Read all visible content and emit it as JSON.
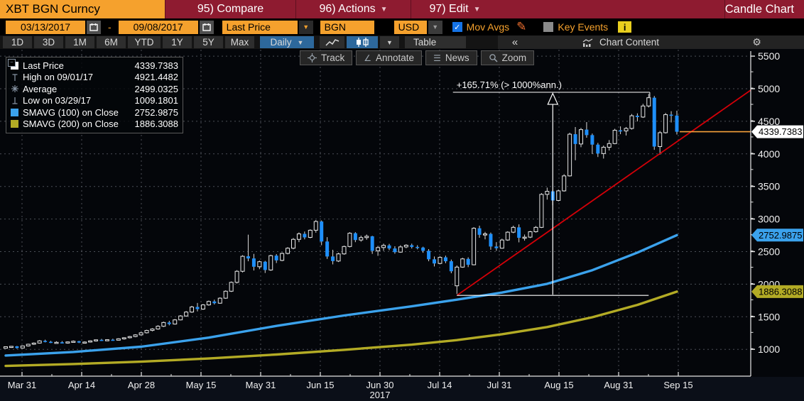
{
  "window": {
    "ticker": "XBT BGN Curncy",
    "menu": [
      {
        "label": "95) Compare",
        "has_dropdown": false
      },
      {
        "label": "96) Actions",
        "has_dropdown": true
      },
      {
        "label": "97) Edit",
        "has_dropdown": true
      }
    ],
    "view_title": "Candle Chart"
  },
  "settings_bar": {
    "date_from": "03/13/2017",
    "date_separator": "-",
    "date_to": "09/08/2017",
    "field": "Last Price",
    "source": "BGN",
    "currency": "USD",
    "mov_avgs_label": "Mov Avgs",
    "mov_avgs_checked": true,
    "key_events_label": "Key Events",
    "key_events_checked": false,
    "info_label": "i"
  },
  "toolbar": {
    "ranges": [
      "1D",
      "3D",
      "1M",
      "6M",
      "YTD",
      "1Y",
      "5Y",
      "Max"
    ],
    "period": "Daily",
    "table_label": "Table",
    "collapse_label": "«",
    "chart_content_label": "Chart Content",
    "gear_icon": "⚙"
  },
  "chart_toolbar": {
    "track": "Track",
    "annotate": "Annotate",
    "news": "News",
    "zoom": "Zoom"
  },
  "legend": {
    "rows": [
      {
        "swatch": "#ffffff",
        "icon": "square",
        "label": "Last Price",
        "value": "4339.7383"
      },
      {
        "swatch": "",
        "icon": "high",
        "label": "High on 09/01/17",
        "value": "4921.4482"
      },
      {
        "swatch": "",
        "icon": "avg",
        "label": "Average",
        "value": "2499.0325"
      },
      {
        "swatch": "",
        "icon": "low",
        "label": "Low on 03/29/17",
        "value": "1009.1801"
      },
      {
        "swatch": "#3ba2ec",
        "icon": "square",
        "label": "SMAVG (100) on Close",
        "value": "2752.9875"
      },
      {
        "swatch": "#b3ab25",
        "icon": "square",
        "label": "SMAVG (200) on Close",
        "value": "1886.3088"
      }
    ]
  },
  "axis_tags": {
    "last_price": "4339.7383",
    "sma100": "2752.9875",
    "sma200": "1886.3088"
  },
  "colors": {
    "bar_red": "#8e1b30",
    "accent_orange": "#f5a12d",
    "candle_up": "#e8e8e8",
    "candle_down": "#1e8ffa",
    "wick": "#d9d9d9",
    "sma100": "#3ba2ec",
    "sma200": "#b3ab25",
    "trend": "#d40008",
    "support": "#ffffff",
    "last_price_line": "#f8a13a",
    "grid": "#4b4f57",
    "axis": "#e8e8e8",
    "selected_blue": "#2d689c"
  },
  "chart_data": {
    "type": "candlestick",
    "title": "XBT BGN Curncy - Candle Chart (Daily, 03/13/2017 - 09/08/2017)",
    "x_labels": [
      "Mar 31",
      "Apr 14",
      "Apr 28",
      "May 15",
      "May 31",
      "Jun 15",
      "Jun 30",
      "Jul 14",
      "Jul 31",
      "Aug 15",
      "Aug 31",
      "Sep 15"
    ],
    "year_label": "2017",
    "y_ticks": [
      1000,
      1500,
      2000,
      2500,
      3000,
      3500,
      4000,
      4500,
      5000,
      5500
    ],
    "y_minor_step": 250,
    "ylim": [
      760,
      5560
    ],
    "grid": true,
    "last_price": 4339.7383,
    "candles": [
      [
        "03/27",
        1016,
        1045,
        1010,
        1040
      ],
      [
        "03/28",
        1040,
        1052,
        1022,
        1046
      ],
      [
        "03/29",
        1046,
        1052,
        1009,
        1020
      ],
      [
        "03/30",
        1020,
        1058,
        1016,
        1052
      ],
      [
        "03/31",
        1052,
        1086,
        1044,
        1078
      ],
      [
        "04/03",
        1078,
        1105,
        1068,
        1096
      ],
      [
        "04/04",
        1096,
        1142,
        1088,
        1130
      ],
      [
        "04/05",
        1130,
        1148,
        1106,
        1116
      ],
      [
        "04/06",
        1116,
        1130,
        1096,
        1102
      ],
      [
        "04/07",
        1102,
        1124,
        1094,
        1108
      ],
      [
        "04/10",
        1108,
        1126,
        1090,
        1096
      ],
      [
        "04/11",
        1096,
        1120,
        1088,
        1114
      ],
      [
        "04/12",
        1114,
        1136,
        1106,
        1124
      ],
      [
        "04/13",
        1124,
        1130,
        1096,
        1104
      ],
      [
        "04/14",
        1104,
        1122,
        1092,
        1112
      ],
      [
        "04/17",
        1112,
        1138,
        1104,
        1130
      ],
      [
        "04/18",
        1130,
        1152,
        1120,
        1146
      ],
      [
        "04/19",
        1146,
        1160,
        1128,
        1136
      ],
      [
        "04/20",
        1136,
        1155,
        1126,
        1148
      ],
      [
        "04/21",
        1148,
        1163,
        1132,
        1140
      ],
      [
        "04/24",
        1140,
        1170,
        1136,
        1162
      ],
      [
        "04/25",
        1162,
        1186,
        1150,
        1178
      ],
      [
        "04/26",
        1178,
        1205,
        1168,
        1196
      ],
      [
        "04/27",
        1196,
        1232,
        1186,
        1222
      ],
      [
        "04/28",
        1222,
        1268,
        1212,
        1254
      ],
      [
        "05/01",
        1254,
        1300,
        1244,
        1290
      ],
      [
        "05/02",
        1290,
        1324,
        1276,
        1312
      ],
      [
        "05/03",
        1312,
        1370,
        1302,
        1354
      ],
      [
        "05/04",
        1354,
        1425,
        1342,
        1412
      ],
      [
        "05/05",
        1412,
        1438,
        1368,
        1388
      ],
      [
        "05/08",
        1388,
        1465,
        1380,
        1452
      ],
      [
        "05/09",
        1452,
        1525,
        1444,
        1512
      ],
      [
        "05/10",
        1512,
        1588,
        1500,
        1572
      ],
      [
        "05/11",
        1572,
        1668,
        1560,
        1650
      ],
      [
        "05/12",
        1650,
        1712,
        1582,
        1618
      ],
      [
        "05/15",
        1618,
        1695,
        1606,
        1682
      ],
      [
        "05/16",
        1682,
        1748,
        1670,
        1735
      ],
      [
        "05/17",
        1735,
        1762,
        1688,
        1708
      ],
      [
        "05/18",
        1708,
        1798,
        1700,
        1785
      ],
      [
        "05/19",
        1785,
        1905,
        1775,
        1892
      ],
      [
        "05/22",
        1892,
        2042,
        1880,
        2028
      ],
      [
        "05/23",
        2028,
        2215,
        2010,
        2198
      ],
      [
        "05/24",
        2198,
        2445,
        2180,
        2428
      ],
      [
        "05/25",
        2428,
        2760,
        2352,
        2395
      ],
      [
        "05/26",
        2395,
        2465,
        2210,
        2268
      ],
      [
        "05/29",
        2268,
        2362,
        2230,
        2345
      ],
      [
        "05/30",
        2345,
        2358,
        2172,
        2218
      ],
      [
        "05/31",
        2218,
        2452,
        2205,
        2438
      ],
      [
        "06/01",
        2438,
        2462,
        2325,
        2365
      ],
      [
        "06/02",
        2365,
        2488,
        2352,
        2472
      ],
      [
        "06/05",
        2472,
        2568,
        2458,
        2552
      ],
      [
        "06/06",
        2552,
        2708,
        2535,
        2688
      ],
      [
        "06/07",
        2688,
        2795,
        2645,
        2772
      ],
      [
        "06/08",
        2772,
        2808,
        2688,
        2718
      ],
      [
        "06/09",
        2718,
        2842,
        2705,
        2828
      ],
      [
        "06/12",
        2828,
        2985,
        2790,
        2962
      ],
      [
        "06/13",
        2962,
        2978,
        2598,
        2655
      ],
      [
        "06/14",
        2655,
        2722,
        2388,
        2425
      ],
      [
        "06/15",
        2425,
        2528,
        2304,
        2355
      ],
      [
        "06/16",
        2355,
        2482,
        2340,
        2465
      ],
      [
        "06/19",
        2465,
        2592,
        2452,
        2578
      ],
      [
        "06/20",
        2578,
        2798,
        2565,
        2782
      ],
      [
        "06/21",
        2782,
        2798,
        2645,
        2678
      ],
      [
        "06/22",
        2678,
        2745,
        2652,
        2715
      ],
      [
        "06/23",
        2715,
        2762,
        2682,
        2735
      ],
      [
        "06/26",
        2735,
        2742,
        2465,
        2512
      ],
      [
        "06/27",
        2512,
        2588,
        2435,
        2562
      ],
      [
        "06/28",
        2562,
        2622,
        2512,
        2595
      ],
      [
        "06/29",
        2595,
        2618,
        2522,
        2548
      ],
      [
        "06/30",
        2548,
        2582,
        2468,
        2492
      ],
      [
        "07/03",
        2492,
        2598,
        2482,
        2572
      ],
      [
        "07/04",
        2572,
        2612,
        2552,
        2598
      ],
      [
        "07/05",
        2598,
        2622,
        2548,
        2572
      ],
      [
        "07/06",
        2572,
        2598,
        2535,
        2562
      ],
      [
        "07/07",
        2562,
        2575,
        2482,
        2512
      ],
      [
        "07/10",
        2512,
        2538,
        2352,
        2382
      ],
      [
        "07/11",
        2382,
        2425,
        2272,
        2318
      ],
      [
        "07/12",
        2318,
        2428,
        2305,
        2412
      ],
      [
        "07/13",
        2412,
        2438,
        2322,
        2352
      ],
      [
        "07/14",
        2352,
        2378,
        2168,
        2198
      ],
      [
        "07/17",
        1975,
        2288,
        1850,
        2262
      ],
      [
        "07/18",
        2262,
        2405,
        2252,
        2388
      ],
      [
        "07/19",
        2388,
        2412,
        2262,
        2298
      ],
      [
        "07/20",
        2298,
        2875,
        2290,
        2858
      ],
      [
        "07/21",
        2858,
        2898,
        2712,
        2758
      ],
      [
        "07/24",
        2758,
        2802,
        2688,
        2772
      ],
      [
        "07/25",
        2772,
        2792,
        2528,
        2578
      ],
      [
        "07/26",
        2578,
        2645,
        2512,
        2552
      ],
      [
        "07/27",
        2552,
        2698,
        2545,
        2678
      ],
      [
        "07/28",
        2678,
        2812,
        2665,
        2798
      ],
      [
        "07/31",
        2798,
        2898,
        2782,
        2872
      ],
      [
        "08/01",
        2872,
        2918,
        2642,
        2712
      ],
      [
        "08/02",
        2712,
        2762,
        2668,
        2722
      ],
      [
        "08/03",
        2722,
        2818,
        2708,
        2805
      ],
      [
        "08/04",
        2805,
        2892,
        2792,
        2872
      ],
      [
        "08/07",
        2872,
        3398,
        2862,
        3378
      ],
      [
        "08/08",
        3378,
        3482,
        3298,
        3425
      ],
      [
        "08/09",
        3425,
        3442,
        3212,
        3285
      ],
      [
        "08/10",
        3285,
        3452,
        3272,
        3432
      ],
      [
        "08/11",
        3432,
        3688,
        3420,
        3662
      ],
      [
        "08/14",
        3662,
        4325,
        3652,
        4302
      ],
      [
        "08/15",
        4302,
        4412,
        3902,
        4152
      ],
      [
        "08/16",
        4152,
        4398,
        4102,
        4372
      ],
      [
        "08/17",
        4372,
        4488,
        4248,
        4288
      ],
      [
        "08/18",
        4288,
        4312,
        3998,
        4142
      ],
      [
        "08/21",
        4142,
        4168,
        3952,
        4005
      ],
      [
        "08/22",
        4005,
        4128,
        3928,
        4102
      ],
      [
        "08/23",
        4102,
        4212,
        4052,
        4158
      ],
      [
        "08/24",
        4158,
        4385,
        4148,
        4362
      ],
      [
        "08/25",
        4362,
        4422,
        4302,
        4352
      ],
      [
        "08/28",
        4352,
        4412,
        4282,
        4390
      ],
      [
        "08/29",
        4390,
        4612,
        4372,
        4585
      ],
      [
        "08/30",
        4585,
        4622,
        4498,
        4565
      ],
      [
        "08/31",
        4565,
        4768,
        4552,
        4735
      ],
      [
        "09/01",
        4735,
        4921,
        4712,
        4862
      ],
      [
        "09/04",
        4862,
        4888,
        4062,
        4112
      ],
      [
        "09/05",
        4112,
        4352,
        3988,
        4325
      ],
      [
        "09/06",
        4325,
        4628,
        4312,
        4602
      ],
      [
        "09/07",
        4602,
        4655,
        4482,
        4588
      ],
      [
        "09/08",
        4588,
        4662,
        4298,
        4339.74
      ]
    ],
    "sma100": {
      "name": "SMAVG (100) on Close",
      "current": 2752.9875,
      "points": [
        [
          0,
          905
        ],
        [
          12,
          960
        ],
        [
          24,
          1040
        ],
        [
          36,
          1180
        ],
        [
          48,
          1360
        ],
        [
          60,
          1520
        ],
        [
          72,
          1660
        ],
        [
          80,
          1762
        ],
        [
          88,
          1872
        ],
        [
          96,
          2005
        ],
        [
          104,
          2215
        ],
        [
          112,
          2485
        ],
        [
          119,
          2753
        ]
      ]
    },
    "sma200": {
      "name": "SMAVG (200) on Close",
      "current": 1886.3088,
      "points": [
        [
          0,
          745
        ],
        [
          12,
          775
        ],
        [
          24,
          810
        ],
        [
          36,
          860
        ],
        [
          48,
          920
        ],
        [
          60,
          992
        ],
        [
          72,
          1072
        ],
        [
          80,
          1142
        ],
        [
          88,
          1232
        ],
        [
          96,
          1342
        ],
        [
          104,
          1492
        ],
        [
          112,
          1682
        ],
        [
          119,
          1886
        ]
      ]
    },
    "trend_line": {
      "start_bar": 80,
      "start_price": 1828,
      "end_price": 4978
    },
    "support_line": {
      "start_bar": 80,
      "end_bar": 114,
      "price": 1828
    },
    "measure": {
      "label": "+165.71% (> 1000%ann.)",
      "arrow_bar": 97,
      "from_price": 1828,
      "top_price": 4945,
      "bracket_start_bar": 79.3,
      "bracket_end_bar": 114.2,
      "end_drop_price": 4870
    }
  }
}
